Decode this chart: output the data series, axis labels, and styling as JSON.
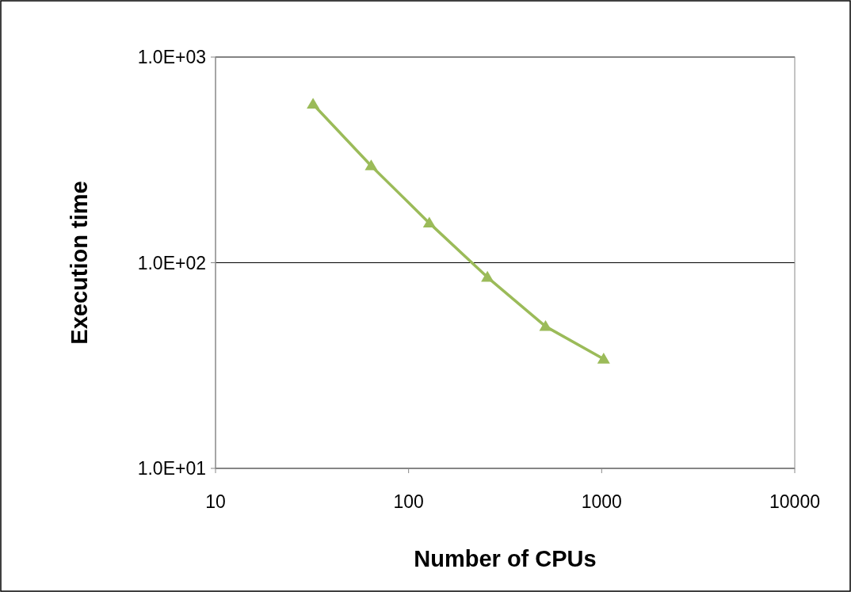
{
  "chart_data": {
    "type": "line",
    "xlabel": "Number of CPUs",
    "ylabel": "Execution time",
    "log": "xy",
    "grid": "y",
    "marker": "triangle",
    "line_style": "solid",
    "xlim": [
      10,
      10000
    ],
    "xticks": [
      10,
      100,
      1000,
      10000
    ],
    "ylim": [
      10,
      1000
    ],
    "yticks": [
      {
        "value": 10,
        "label": "1.0E+01"
      },
      {
        "value": 100,
        "label": "1.0E+02"
      },
      {
        "value": 1000,
        "label": "1.0E+03"
      }
    ],
    "series": [
      {
        "color": "#9bbb59",
        "x": [
          32,
          64,
          128,
          256,
          512,
          1024
        ],
        "values": [
          590,
          296,
          156,
          85,
          49,
          34
        ]
      }
    ]
  }
}
